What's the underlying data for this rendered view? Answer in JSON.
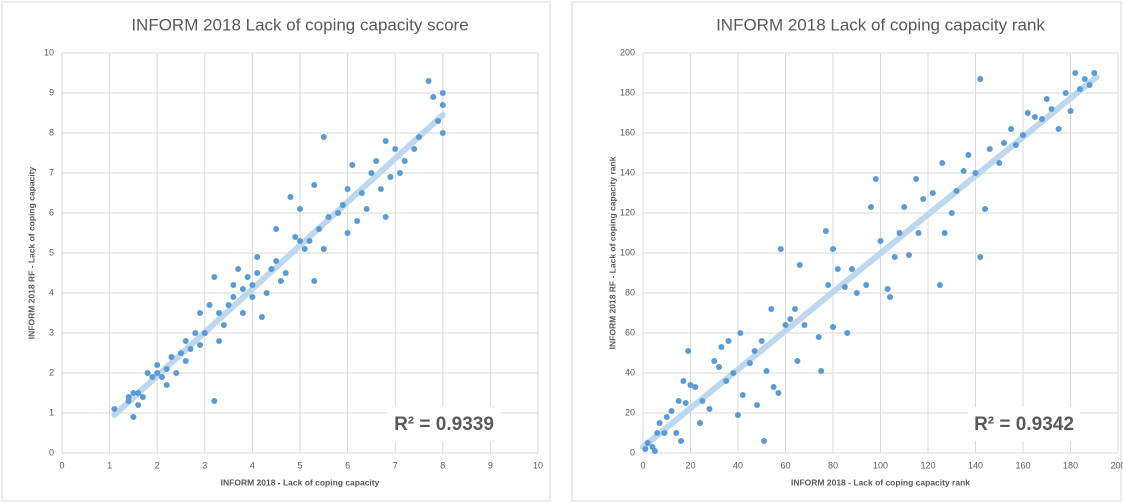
{
  "chart_data": [
    {
      "type": "scatter",
      "title": "INFORM 2018 Lack of coping capacity score",
      "x_label": "INFORM 2018 - Lack of coping capacity",
      "y_label": "INFORM 2018 RF - Lack of coping capacity",
      "color": "#5b9bd5",
      "annotation": "R² = 0.9339",
      "xlim": [
        0,
        10
      ],
      "ylim": [
        0,
        10
      ],
      "xticks": [
        0,
        1,
        2,
        3,
        4,
        5,
        6,
        7,
        8,
        9,
        10
      ],
      "yticks": [
        0,
        1,
        2,
        3,
        4,
        5,
        6,
        7,
        8,
        9,
        10
      ],
      "grid": true,
      "trendline": {
        "color": "#bdd7ee",
        "x": [
          1.1,
          8
        ],
        "y": [
          0.95,
          8.45
        ]
      },
      "x": [
        1.1,
        1.4,
        1.4,
        1.5,
        1.5,
        1.6,
        1.6,
        1.7,
        1.8,
        1.9,
        2.0,
        2.0,
        2.1,
        2.2,
        2.2,
        2.3,
        2.4,
        2.5,
        2.6,
        2.6,
        2.7,
        2.8,
        2.9,
        2.9,
        3.0,
        3.1,
        3.2,
        3.2,
        3.3,
        3.3,
        3.4,
        3.5,
        3.6,
        3.6,
        3.7,
        3.8,
        3.8,
        3.9,
        4.0,
        4.0,
        4.1,
        4.1,
        4.2,
        4.3,
        4.4,
        4.5,
        4.5,
        4.6,
        4.7,
        4.8,
        4.9,
        5.0,
        5.0,
        5.1,
        5.2,
        5.3,
        5.3,
        5.4,
        5.5,
        5.5,
        5.6,
        5.8,
        5.9,
        6.0,
        6.0,
        6.1,
        6.2,
        6.3,
        6.4,
        6.5,
        6.6,
        6.7,
        6.8,
        6.8,
        6.9,
        7.0,
        7.1,
        7.2,
        7.4,
        7.5,
        7.7,
        7.8,
        7.9,
        8.0,
        8.0,
        8.0
      ],
      "y": [
        1.1,
        1.3,
        1.4,
        0.9,
        1.5,
        1.2,
        1.5,
        1.4,
        2.0,
        1.9,
        2.0,
        2.2,
        1.9,
        2.1,
        1.7,
        2.4,
        2.0,
        2.5,
        2.8,
        2.3,
        2.6,
        3.0,
        3.5,
        2.7,
        3.0,
        3.7,
        4.4,
        1.3,
        3.5,
        2.8,
        3.2,
        3.7,
        3.9,
        4.2,
        4.6,
        3.5,
        4.1,
        4.4,
        3.9,
        4.2,
        4.9,
        4.5,
        3.4,
        4.0,
        4.6,
        4.8,
        5.6,
        4.3,
        4.5,
        6.4,
        5.4,
        5.3,
        6.1,
        5.1,
        5.3,
        6.7,
        4.3,
        5.6,
        7.9,
        5.1,
        5.9,
        6.0,
        6.2,
        6.6,
        5.5,
        7.2,
        5.8,
        6.5,
        6.1,
        7.0,
        7.3,
        6.6,
        7.8,
        5.9,
        6.9,
        7.6,
        7.0,
        7.3,
        7.6,
        7.9,
        9.3,
        8.9,
        8.3,
        9.0,
        8.7,
        8.0
      ]
    },
    {
      "type": "scatter",
      "title": "INFORM 2018 Lack of coping capacity rank",
      "x_label": "INFORM 2018  - Lack of coping capacity rank",
      "y_label": "INFORM 2018 RF - Lack of coping capacity rank",
      "color": "#5b9bd5",
      "annotation": "R² = 0.9342",
      "xlim": [
        0,
        200
      ],
      "ylim": [
        0,
        200
      ],
      "xticks": [
        0,
        20,
        40,
        60,
        80,
        100,
        120,
        140,
        160,
        180,
        200
      ],
      "yticks": [
        0,
        20,
        40,
        60,
        80,
        100,
        120,
        140,
        160,
        180,
        200
      ],
      "grid": true,
      "trendline": {
        "color": "#bdd7ee",
        "x": [
          0,
          191
        ],
        "y": [
          3,
          188
        ]
      },
      "x": [
        1,
        2,
        4,
        5,
        6,
        7,
        9,
        10,
        12,
        14,
        15,
        16,
        17,
        18,
        19,
        20,
        22,
        24,
        25,
        28,
        30,
        32,
        33,
        35,
        36,
        38,
        40,
        41,
        42,
        45,
        47,
        48,
        50,
        51,
        52,
        54,
        55,
        57,
        58,
        60,
        62,
        64,
        65,
        66,
        68,
        74,
        75,
        77,
        78,
        80,
        80,
        82,
        85,
        86,
        88,
        90,
        94,
        96,
        98,
        100,
        103,
        104,
        106,
        108,
        110,
        112,
        115,
        116,
        118,
        122,
        125,
        126,
        127,
        130,
        132,
        135,
        137,
        140,
        142,
        142,
        144,
        146,
        150,
        152,
        155,
        157,
        160,
        162,
        165,
        168,
        170,
        172,
        175,
        178,
        180,
        182,
        184,
        186,
        188,
        190
      ],
      "y": [
        2,
        5,
        3,
        1,
        10,
        15,
        10,
        18,
        21,
        10,
        26,
        6,
        36,
        25,
        51,
        34,
        33,
        15,
        26,
        22,
        46,
        43,
        53,
        36,
        56,
        40,
        19,
        60,
        29,
        45,
        51,
        24,
        56,
        6,
        41,
        72,
        33,
        30,
        102,
        64,
        67,
        72,
        46,
        94,
        64,
        58,
        41,
        111,
        84,
        102,
        63,
        92,
        83,
        60,
        92,
        80,
        84,
        123,
        137,
        106,
        82,
        78,
        98,
        110,
        123,
        99,
        137,
        110,
        127,
        130,
        84,
        145,
        110,
        120,
        131,
        141,
        149,
        140,
        187,
        98,
        122,
        152,
        145,
        155,
        162,
        154,
        159,
        170,
        168,
        167,
        177,
        172,
        162,
        180,
        171,
        190,
        182,
        187,
        184,
        190
      ]
    }
  ]
}
